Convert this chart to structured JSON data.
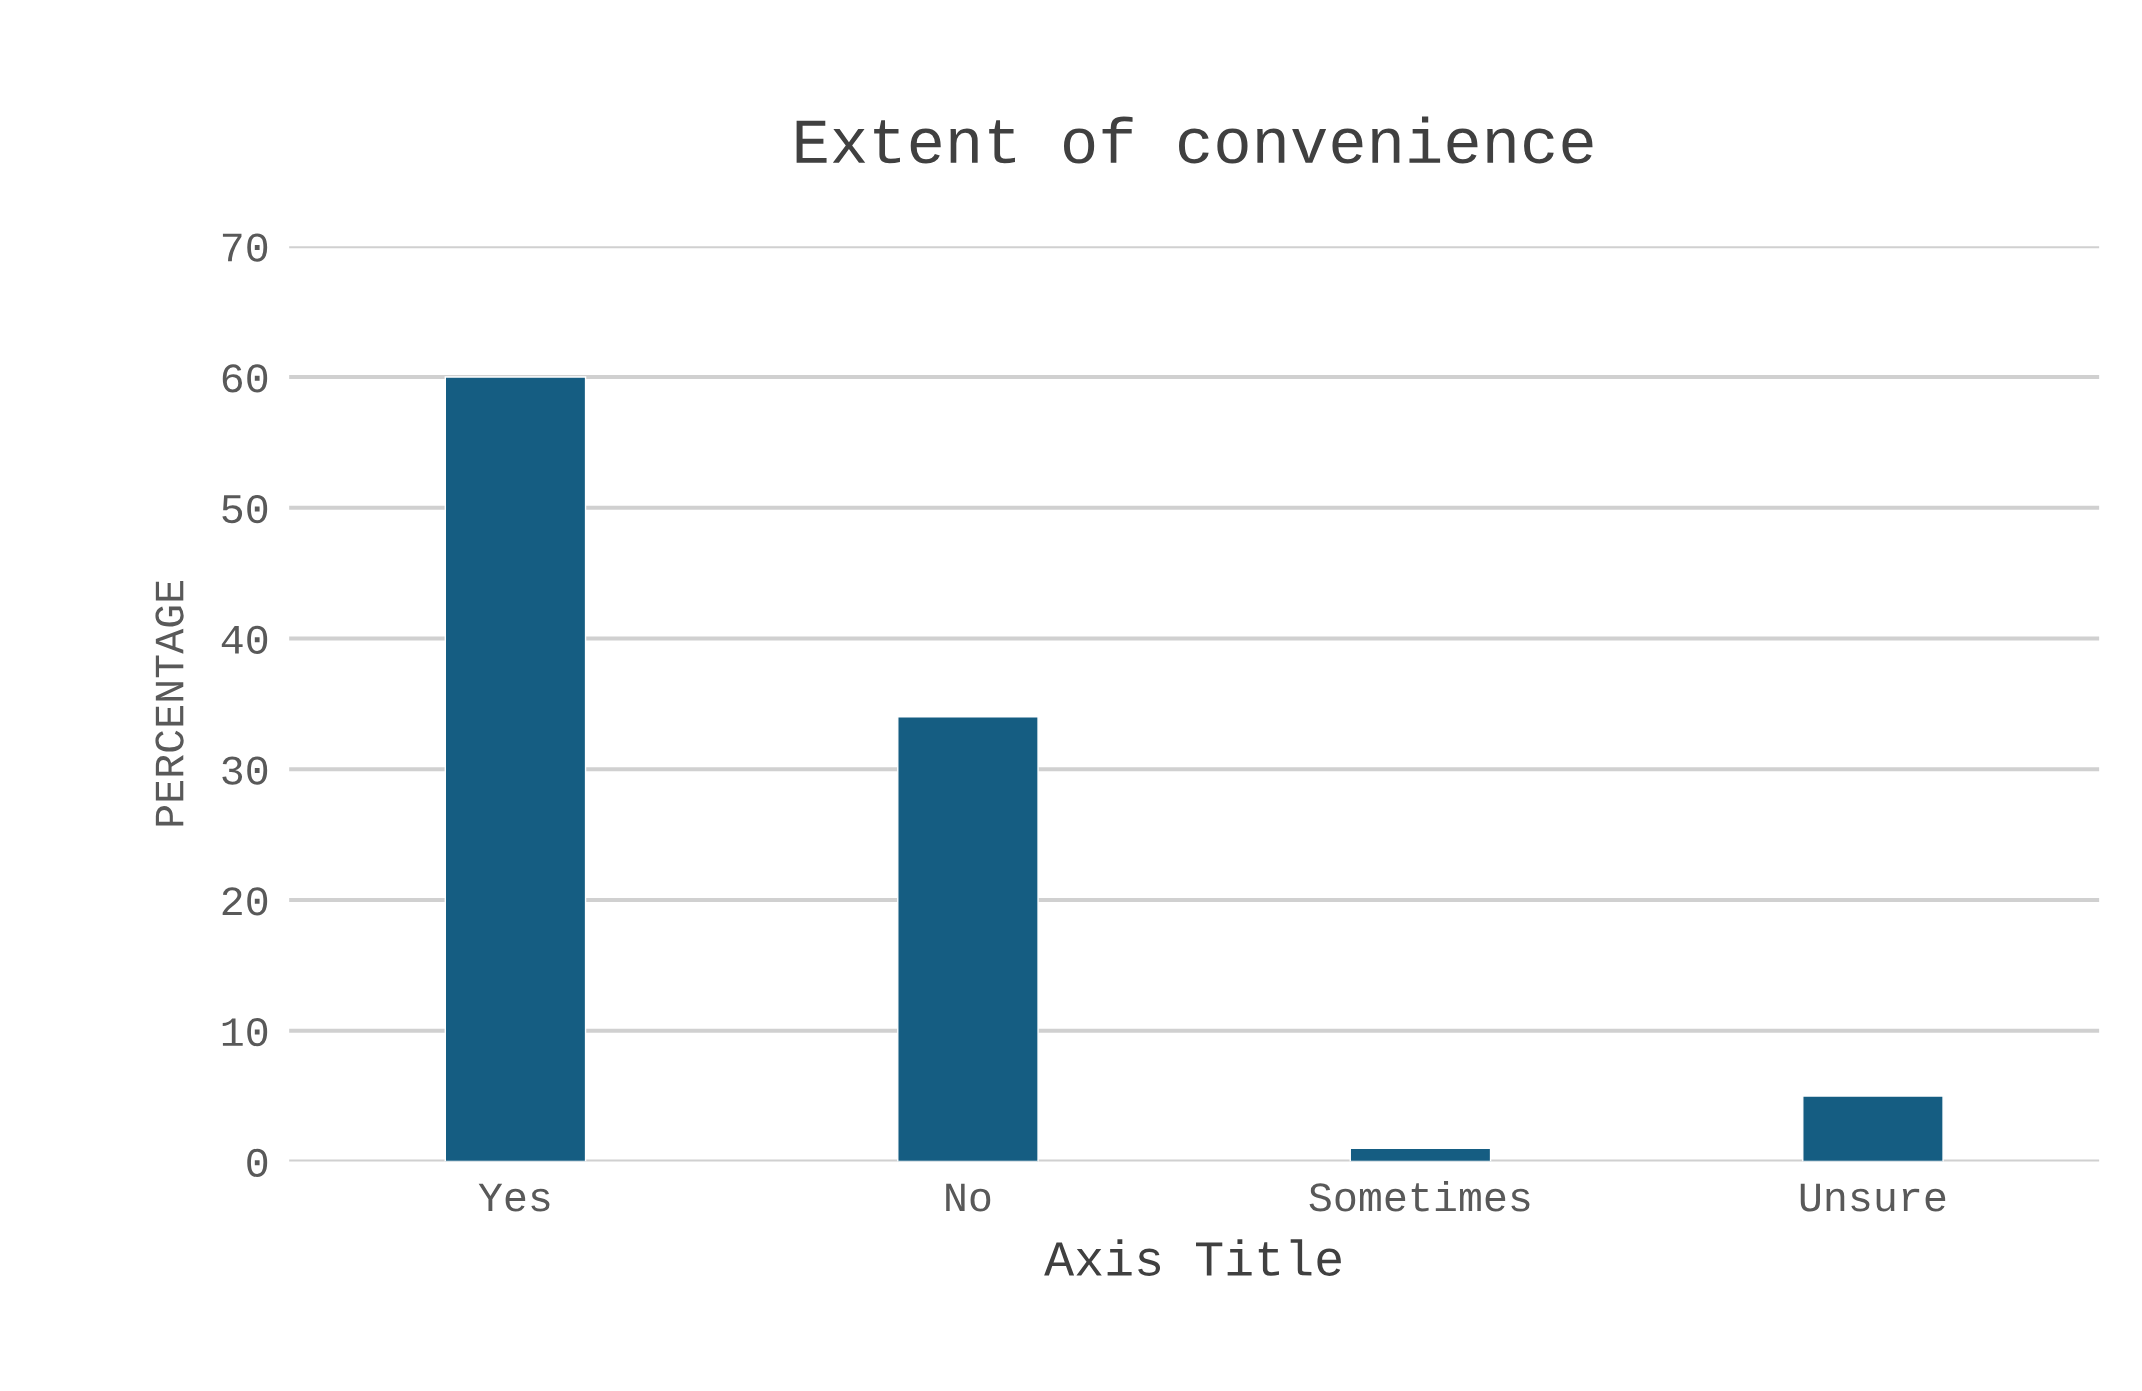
{
  "chart_data": {
    "type": "bar",
    "title": "Extent of convenience",
    "xlabel": "Axis Title",
    "ylabel": "PERCENTAGE",
    "categories": [
      "Yes",
      "No",
      "Sometimes",
      "Unsure"
    ],
    "values": [
      60,
      34,
      1,
      5
    ],
    "color": "#155d82",
    "ylim": [
      0,
      70
    ],
    "yticks": [
      0,
      10,
      20,
      30,
      40,
      50,
      60,
      70
    ],
    "grid": "y"
  }
}
